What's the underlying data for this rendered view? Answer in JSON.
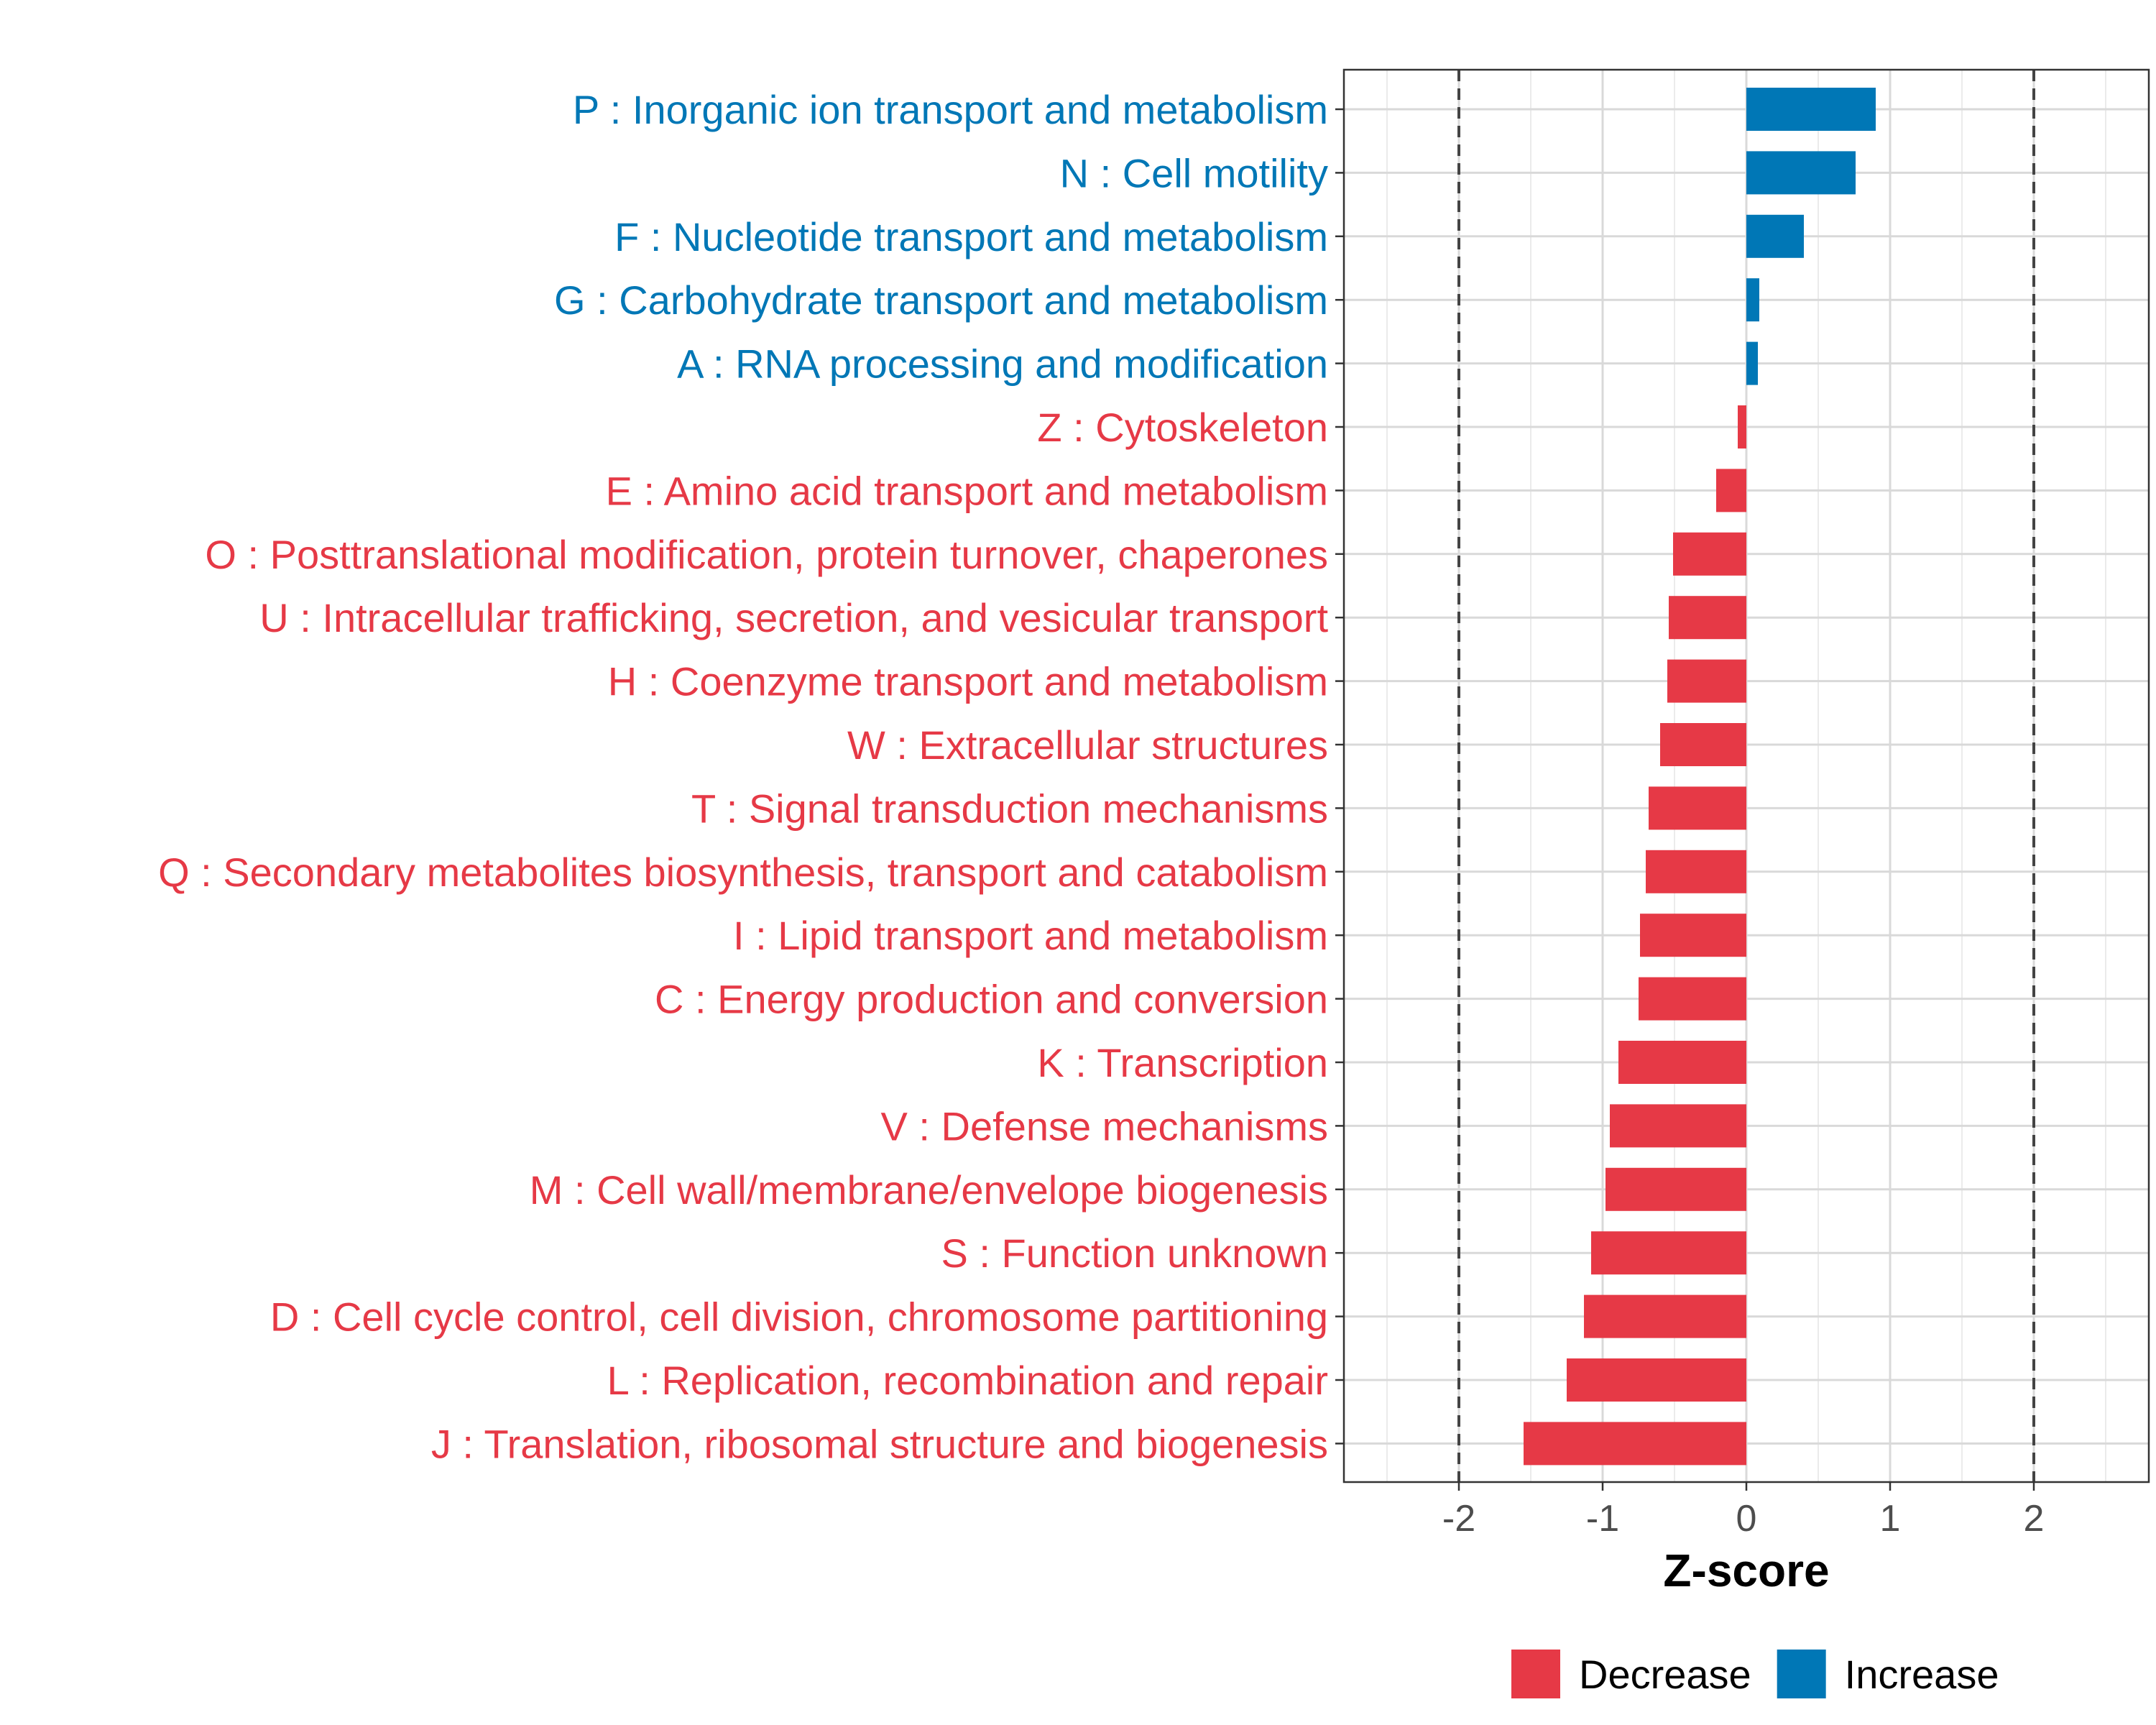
{
  "chart_data": {
    "type": "bar",
    "orientation": "horizontal",
    "xlabel": "Z-score",
    "xlim": [
      -2.8,
      2.8
    ],
    "xticks": [
      -2,
      -1,
      0,
      1,
      2
    ],
    "xtick_labels": [
      "-2",
      "-1",
      "0",
      "1",
      "2"
    ],
    "reference_lines": [
      -2,
      2
    ],
    "grid": true,
    "categories": [
      "P : Inorganic ion transport and metabolism",
      "N : Cell motility",
      "F : Nucleotide transport and metabolism",
      "G : Carbohydrate transport and metabolism",
      "A : RNA processing and modification",
      "Z : Cytoskeleton",
      "E : Amino acid transport and metabolism",
      "O : Posttranslational modification, protein turnover, chaperones",
      "U : Intracellular trafficking, secretion, and vesicular transport",
      "H : Coenzyme transport and metabolism",
      "W : Extracellular structures",
      "T : Signal transduction mechanisms",
      "Q : Secondary metabolites biosynthesis, transport and catabolism",
      "I : Lipid transport and metabolism",
      "C : Energy production and conversion",
      "K : Transcription",
      "V : Defense mechanisms",
      "M : Cell wall/membrane/envelope biogenesis",
      "S : Function unknown",
      "D : Cell cycle control, cell division, chromosome partitioning",
      "L : Replication, recombination and repair",
      "J : Translation, ribosomal structure and biogenesis"
    ],
    "values": [
      0.9,
      0.76,
      0.4,
      0.09,
      0.08,
      -0.06,
      -0.21,
      -0.51,
      -0.54,
      -0.55,
      -0.6,
      -0.68,
      -0.7,
      -0.74,
      -0.75,
      -0.89,
      -0.95,
      -0.98,
      -1.08,
      -1.13,
      -1.25,
      -1.55
    ],
    "groups": [
      "Increase",
      "Increase",
      "Increase",
      "Increase",
      "Increase",
      "Decrease",
      "Decrease",
      "Decrease",
      "Decrease",
      "Decrease",
      "Decrease",
      "Decrease",
      "Decrease",
      "Decrease",
      "Decrease",
      "Decrease",
      "Decrease",
      "Decrease",
      "Decrease",
      "Decrease",
      "Decrease",
      "Decrease"
    ],
    "legend": {
      "position": "bottom",
      "items": [
        {
          "label": "Decrease",
          "color": "#E63946"
        },
        {
          "label": "Increase",
          "color": "#0077B6"
        }
      ]
    },
    "colors": {
      "Decrease": "#E63946",
      "Increase": "#0077B6"
    }
  }
}
